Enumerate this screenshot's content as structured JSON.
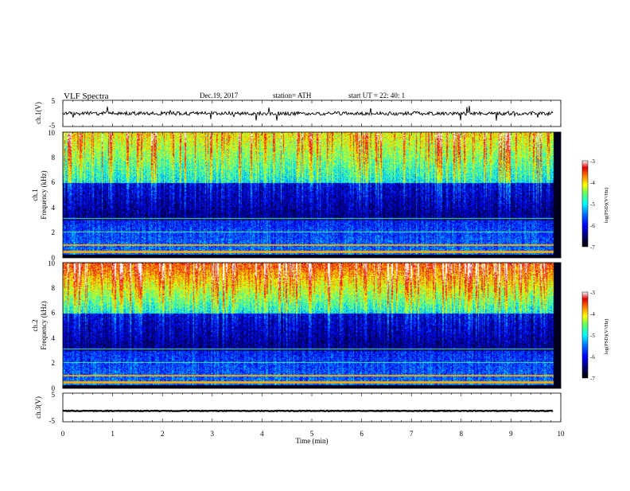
{
  "header": {
    "title": "VLF  Spectra",
    "date": "Dec.19, 2017",
    "station": "station= ATH",
    "start": "start  UT  =   22: 40: 1"
  },
  "colors": {
    "background": "#ffffff",
    "axis": "#000000",
    "colormap": [
      "#000030",
      "#00007a",
      "#0000ff",
      "#0073ff",
      "#00ffff",
      "#80ff80",
      "#ffff00",
      "#ff8000",
      "#e00000",
      "#ffffff"
    ]
  },
  "chart_data": [
    {
      "type": "line",
      "panel": "ch1-waveform",
      "ylabel": "ch.1(V)",
      "ylim": [
        -5,
        5
      ],
      "yticks": [
        "5",
        "-5"
      ],
      "xlim": [
        0,
        10
      ],
      "baseline_v": 0,
      "series": [
        {
          "color": "#000000"
        }
      ]
    },
    {
      "type": "heatmap",
      "panel": "ch1-spectrogram",
      "ylabel_line1": "ch.1",
      "ylabel_line2": "Frequency  (kHz)",
      "ylim": [
        0,
        10
      ],
      "yticks": [
        "0",
        "2",
        "4",
        "6",
        "8",
        "10"
      ],
      "xlim": [
        0,
        10
      ],
      "colorbar": {
        "label": "log(PSD)(V²/Hz)",
        "range": [
          -7,
          -3
        ],
        "ticks": [
          "-3",
          "-4",
          "-5",
          "-6",
          "-7"
        ]
      }
    },
    {
      "type": "heatmap",
      "panel": "ch2-spectrogram",
      "ylabel_line1": "ch.2",
      "ylabel_line2": "Frequency  (kHz)",
      "ylim": [
        0,
        10
      ],
      "yticks": [
        "0",
        "2",
        "4",
        "6",
        "8",
        "10"
      ],
      "xlim": [
        0,
        10
      ],
      "colorbar": {
        "label": "log(PSD)(V²/Hz)",
        "range": [
          -7,
          -3
        ],
        "ticks": [
          "-3",
          "-4",
          "-5",
          "-6",
          "-7"
        ]
      }
    },
    {
      "type": "line",
      "panel": "ch3-waveform",
      "ylabel": "ch.3(V)",
      "ylim": [
        -5,
        5
      ],
      "yticks": [
        "5",
        "-5"
      ],
      "xlim": [
        0,
        10
      ],
      "xlabel": "Time  (min)",
      "xticks": [
        "0",
        "1",
        "2",
        "3",
        "4",
        "5",
        "6",
        "7",
        "8",
        "9",
        "10"
      ],
      "baseline_v": -1.2,
      "series": [
        {
          "color": "#000000"
        }
      ]
    }
  ]
}
